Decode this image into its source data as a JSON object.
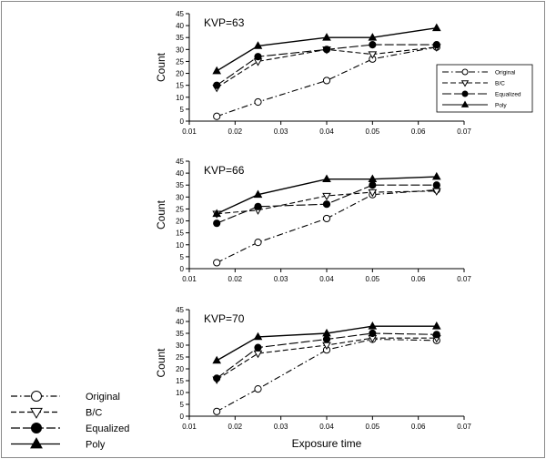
{
  "figure": {
    "xlabel": "Exposure time",
    "ylabel": "Count",
    "bottom_legend": [
      "Original",
      "B/C",
      "Equalized",
      "Poly"
    ],
    "small_legend": [
      "Original",
      "B/C",
      "Equalized",
      "Poly"
    ]
  },
  "chart_data": [
    {
      "type": "line",
      "title": "KVP=63",
      "xlabel": "",
      "ylabel": "Count",
      "xlim": [
        0.01,
        0.07
      ],
      "ylim": [
        0,
        45
      ],
      "xticks": [
        "0.01",
        "0.02",
        "0.03",
        "0.04",
        "0.05",
        "0.06",
        "0.07"
      ],
      "yticks": [
        "0",
        "5",
        "10",
        "15",
        "20",
        "25",
        "30",
        "35",
        "40",
        "45"
      ],
      "x": [
        0.016,
        0.025,
        0.04,
        0.05,
        0.064
      ],
      "series": [
        {
          "name": "Original",
          "values": [
            2,
            8,
            17,
            26,
            31
          ],
          "marker": "circle-open",
          "dash": "dashdot"
        },
        {
          "name": "B/C",
          "values": [
            14,
            25,
            30,
            28,
            31
          ],
          "marker": "triangle-down-open",
          "dash": "dashed"
        },
        {
          "name": "Equalized",
          "values": [
            15,
            27,
            30,
            32,
            32
          ],
          "marker": "circle-filled",
          "dash": "longdash"
        },
        {
          "name": "Poly",
          "values": [
            21,
            31.5,
            35,
            35,
            39
          ],
          "marker": "triangle-up-filled",
          "dash": "solid"
        }
      ],
      "legend": "right"
    },
    {
      "type": "line",
      "title": "KVP=66",
      "xlabel": "",
      "ylabel": "Count",
      "xlim": [
        0.01,
        0.07
      ],
      "ylim": [
        0,
        45
      ],
      "xticks": [
        "0.01",
        "0.02",
        "0.03",
        "0.04",
        "0.05",
        "0.06",
        "0.07"
      ],
      "yticks": [
        "0",
        "5",
        "10",
        "15",
        "20",
        "25",
        "30",
        "35",
        "40",
        "45"
      ],
      "x": [
        0.016,
        0.025,
        0.04,
        0.05,
        0.064
      ],
      "series": [
        {
          "name": "Original",
          "values": [
            2.5,
            11,
            21,
            31,
            33
          ],
          "marker": "circle-open",
          "dash": "dashdot"
        },
        {
          "name": "B/C",
          "values": [
            23,
            24.5,
            30.5,
            32,
            32.5
          ],
          "marker": "triangle-down-open",
          "dash": "dashed"
        },
        {
          "name": "Equalized",
          "values": [
            19,
            26,
            27,
            35,
            35
          ],
          "marker": "circle-filled",
          "dash": "longdash"
        },
        {
          "name": "Poly",
          "values": [
            23,
            31,
            37.5,
            37.5,
            38.5
          ],
          "marker": "triangle-up-filled",
          "dash": "solid"
        }
      ]
    },
    {
      "type": "line",
      "title": "KVP=70",
      "xlabel": "Exposure time",
      "ylabel": "Count",
      "xlim": [
        0.01,
        0.07
      ],
      "ylim": [
        0,
        45
      ],
      "xticks": [
        "0.01",
        "0.02",
        "0.03",
        "0.04",
        "0.05",
        "0.06",
        "0.07"
      ],
      "yticks": [
        "0",
        "5",
        "10",
        "15",
        "20",
        "25",
        "30",
        "35",
        "40",
        "45"
      ],
      "x": [
        0.016,
        0.025,
        0.04,
        0.05,
        0.064
      ],
      "series": [
        {
          "name": "Original",
          "values": [
            2,
            11.5,
            28,
            32.5,
            32
          ],
          "marker": "circle-open",
          "dash": "dashdot"
        },
        {
          "name": "B/C",
          "values": [
            15.5,
            26.5,
            30,
            33,
            33
          ],
          "marker": "triangle-down-open",
          "dash": "dashed"
        },
        {
          "name": "Equalized",
          "values": [
            16,
            29,
            32.5,
            35,
            34.5
          ],
          "marker": "circle-filled",
          "dash": "longdash"
        },
        {
          "name": "Poly",
          "values": [
            23.5,
            33.5,
            35,
            38,
            38
          ],
          "marker": "triangle-up-filled",
          "dash": "solid"
        }
      ]
    }
  ]
}
